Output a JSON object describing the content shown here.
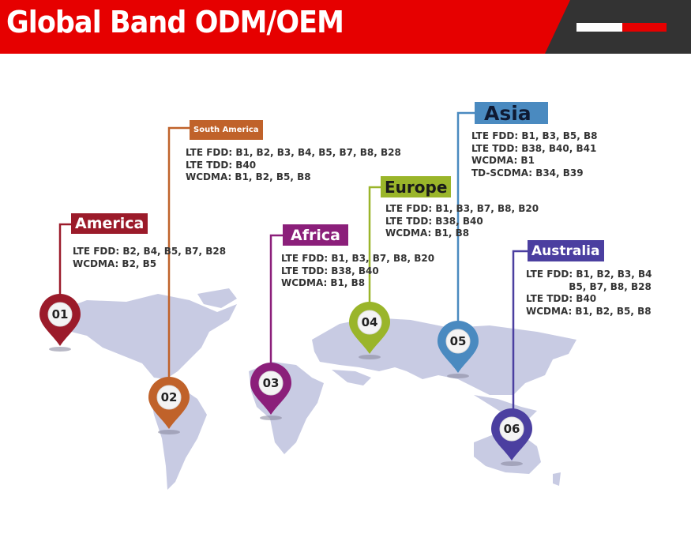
{
  "header": {
    "title": "Global Band ODM/OEM",
    "accent": "#e60000",
    "dark": "#333333"
  },
  "regions": [
    {
      "id": "america",
      "name": "America",
      "number": "01",
      "color": "#9b1b2a",
      "lines": [
        "LTE FDD: B2, B4, B5, B7, B28",
        "WCDMA: B2, B5"
      ]
    },
    {
      "id": "south-america",
      "name": "South America",
      "number": "02",
      "color": "#c0622a",
      "lines": [
        "LTE FDD: B1, B2, B3, B4, B5, B7, B8, B28",
        "LTE TDD: B40",
        "WCDMA: B1, B2, B5, B8"
      ]
    },
    {
      "id": "africa",
      "name": "Africa",
      "number": "03",
      "color": "#8b1f7a",
      "lines": [
        "LTE FDD: B1, B3, B7, B8, B20",
        "LTE TDD: B38, B40",
        "WCDMA: B1, B8"
      ]
    },
    {
      "id": "europe",
      "name": "Europe",
      "number": "04",
      "color": "#9ab52a",
      "lines": [
        "LTE FDD: B1, B3, B7, B8, B20",
        "LTE TDD: B38, B40",
        "WCDMA: B1, B8"
      ]
    },
    {
      "id": "asia",
      "name": "Asia",
      "number": "05",
      "color": "#4a8ac0",
      "lines": [
        "LTE FDD: B1, B3, B5, B8",
        "LTE TDD: B38, B40, B41",
        "WCDMA: B1",
        "TD-SCDMA: B34, B39"
      ]
    },
    {
      "id": "australia",
      "name": "Australia",
      "number": "06",
      "color": "#4b3fa0",
      "lines": [
        "LTE FDD: B1, B2, B3, B4",
        "             B5, B7, B8, B28",
        "LTE TDD: B40",
        "WCDMA: B1, B2, B5, B8"
      ]
    }
  ]
}
